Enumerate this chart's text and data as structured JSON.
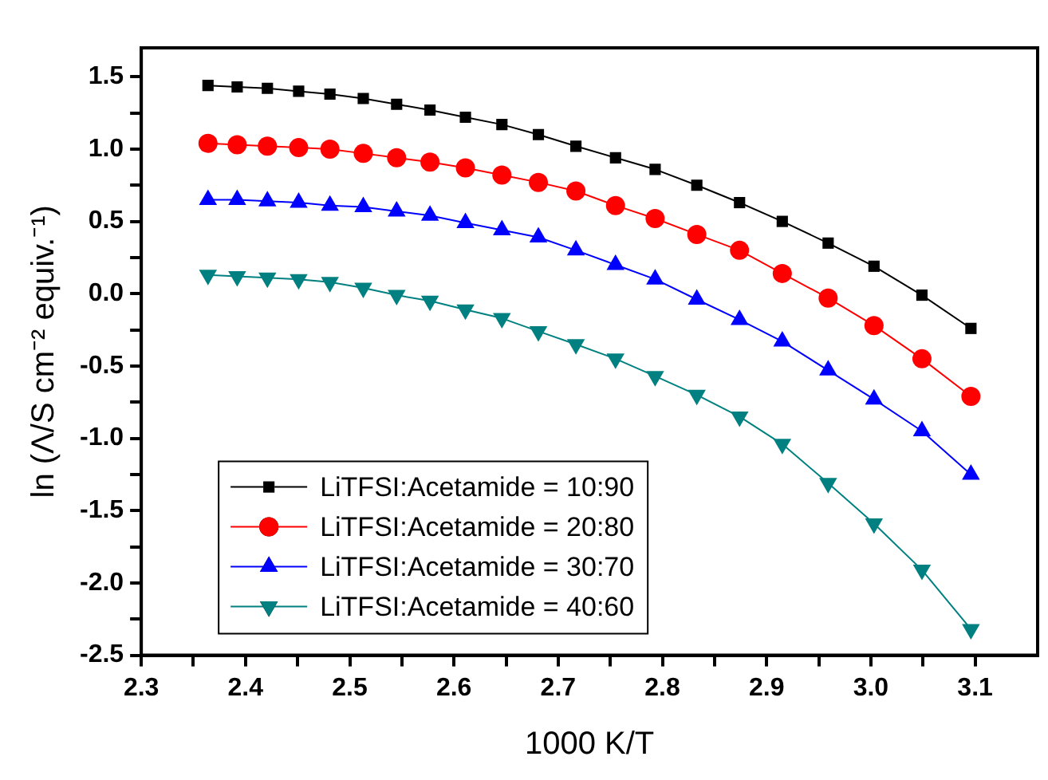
{
  "chart_data": {
    "type": "line",
    "xlabel": "1000 K/T",
    "ylabel": "ln (Λ/S cm⁻² equiv.⁻¹)",
    "x": [
      2.364,
      2.392,
      2.421,
      2.451,
      2.481,
      2.513,
      2.545,
      2.577,
      2.611,
      2.646,
      2.681,
      2.717,
      2.755,
      2.793,
      2.833,
      2.874,
      2.915,
      2.959,
      3.003,
      3.049,
      3.096
    ],
    "series": [
      {
        "name": "LiTFSI:Acetamide = 10:90",
        "color": "#000000",
        "marker": "square",
        "values": [
          1.44,
          1.43,
          1.42,
          1.4,
          1.38,
          1.35,
          1.31,
          1.27,
          1.22,
          1.17,
          1.1,
          1.02,
          0.94,
          0.86,
          0.75,
          0.63,
          0.5,
          0.35,
          0.19,
          -0.01,
          -0.24
        ]
      },
      {
        "name": "LiTFSI:Acetamide = 20:80",
        "color": "#ff0000",
        "marker": "circle",
        "values": [
          1.04,
          1.03,
          1.02,
          1.01,
          1.0,
          0.97,
          0.94,
          0.91,
          0.87,
          0.82,
          0.77,
          0.71,
          0.61,
          0.52,
          0.41,
          0.3,
          0.14,
          -0.03,
          -0.22,
          -0.45,
          -0.71
        ]
      },
      {
        "name": "LiTFSI:Acetamide = 30:70",
        "color": "#0000ff",
        "marker": "triangle",
        "values": [
          0.65,
          0.65,
          0.64,
          0.63,
          0.61,
          0.6,
          0.57,
          0.54,
          0.49,
          0.44,
          0.39,
          0.3,
          0.2,
          0.1,
          -0.04,
          -0.18,
          -0.33,
          -0.53,
          -0.73,
          -0.95,
          -1.25
        ]
      },
      {
        "name": "LiTFSI:Acetamide = 40:60",
        "color": "#008080",
        "marker": "triangle-down",
        "values": [
          0.13,
          0.12,
          0.11,
          0.1,
          0.08,
          0.04,
          -0.01,
          -0.05,
          -0.11,
          -0.17,
          -0.26,
          -0.35,
          -0.45,
          -0.57,
          -0.7,
          -0.85,
          -1.04,
          -1.31,
          -1.59,
          -1.91,
          -2.32
        ]
      }
    ],
    "xlim": [
      2.3,
      3.16
    ],
    "xticks": [
      2.3,
      {
        "value": 2.35,
        "label": null
      },
      2.4,
      {
        "value": 2.45,
        "label": null
      },
      2.5,
      {
        "value": 2.55,
        "label": null
      },
      2.6,
      {
        "value": 2.65,
        "label": null
      },
      2.7,
      {
        "value": 2.75,
        "label": null
      },
      2.8,
      {
        "value": 2.85,
        "label": null
      },
      2.9,
      {
        "value": 2.95,
        "label": null
      },
      {
        "value": 3.0,
        "label": "3.0"
      },
      {
        "value": 3.05,
        "label": null
      },
      3.1
    ],
    "ylim": [
      -2.5,
      1.7
    ],
    "yticks": [
      -2.5,
      {
        "value": -2.25,
        "label": null
      },
      {
        "value": -2.0,
        "label": "-2.0"
      },
      {
        "value": -1.75,
        "label": null
      },
      -1.5,
      {
        "value": -1.25,
        "label": null
      },
      {
        "value": -1.0,
        "label": "-1.0"
      },
      {
        "value": -0.75,
        "label": null
      },
      -0.5,
      {
        "value": -0.25,
        "label": null
      },
      {
        "value": 0,
        "label": "0.0"
      },
      {
        "value": 0.25,
        "label": null
      },
      0.5,
      {
        "value": 0.75,
        "label": null
      },
      {
        "value": 1,
        "label": "1.0"
      },
      {
        "value": 1.25,
        "label": null
      },
      1.5
    ],
    "grid": false,
    "legend": "bottom left"
  }
}
